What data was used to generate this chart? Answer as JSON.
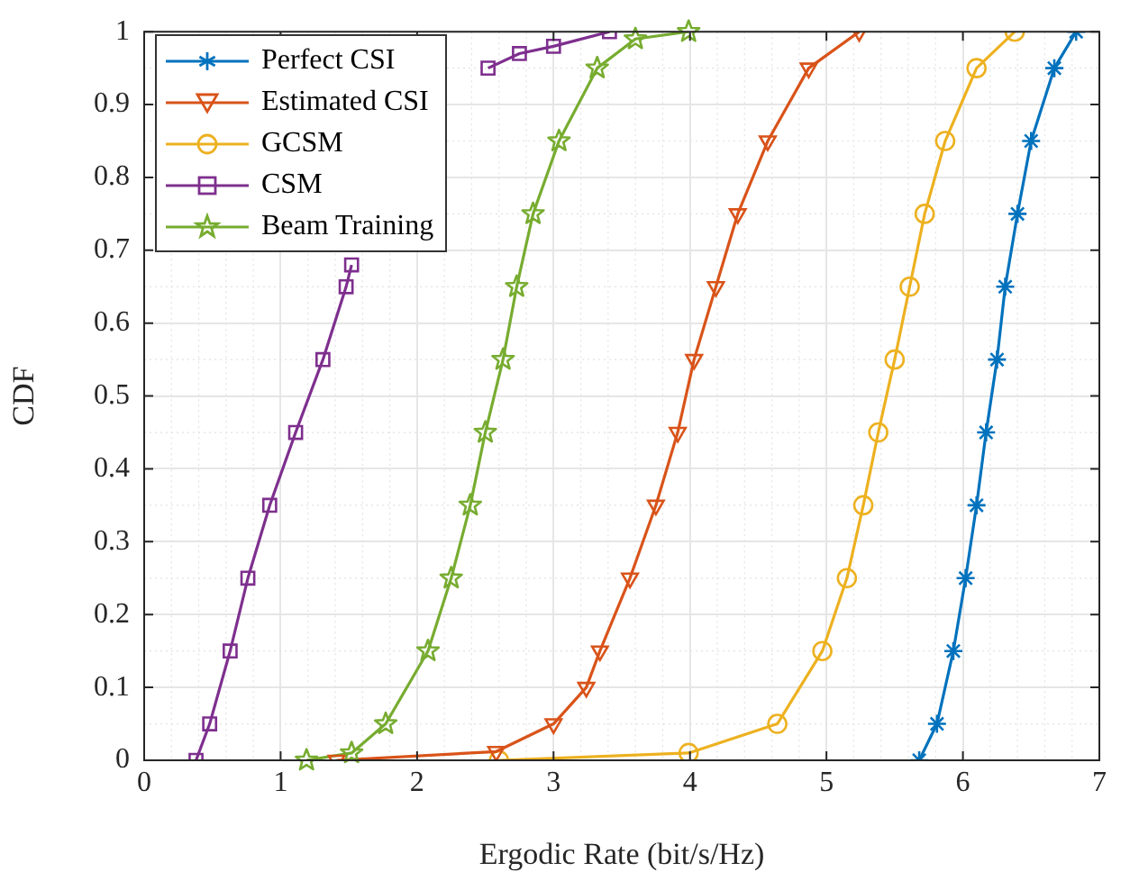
{
  "chart_data": {
    "type": "line",
    "xlabel": "Ergodic Rate (bit/s/Hz)",
    "ylabel": "CDF",
    "xlim": [
      0,
      7
    ],
    "ylim": [
      0,
      1
    ],
    "xticks": [
      0,
      1,
      2,
      3,
      4,
      5,
      6,
      7
    ],
    "yticks": [
      0,
      0.1,
      0.2,
      0.3,
      0.4,
      0.5,
      0.6,
      0.7,
      0.8,
      0.9,
      1
    ],
    "grid": true,
    "legend": "top left",
    "line_style": "solid",
    "series": [
      {
        "name": "Perfect CSI",
        "color": "#0072bd",
        "marker": "cross",
        "x": [
          5.68,
          5.81,
          5.93,
          6.02,
          6.1,
          6.17,
          6.25,
          6.31,
          6.4,
          6.5,
          6.67,
          6.83
        ],
        "values": [
          0,
          0.05,
          0.15,
          0.25,
          0.35,
          0.45,
          0.55,
          0.65,
          0.75,
          0.85,
          0.95,
          1
        ]
      },
      {
        "name": "Estimated CSI",
        "color": "#d95319",
        "marker": "triangle",
        "x": [
          1.41,
          2.58,
          3.0,
          3.24,
          3.34,
          3.56,
          3.75,
          3.91,
          4.03,
          4.19,
          4.35,
          4.57,
          4.87,
          5.24
        ],
        "values": [
          0,
          0.012,
          0.05,
          0.1,
          0.15,
          0.25,
          0.35,
          0.45,
          0.55,
          0.65,
          0.75,
          0.85,
          0.95,
          1
        ]
      },
      {
        "name": "GCSM",
        "color": "#edb120",
        "marker": "circle",
        "x": [
          2.6,
          3.99,
          4.64,
          4.97,
          5.15,
          5.27,
          5.38,
          5.5,
          5.61,
          5.72,
          5.87,
          6.1,
          6.38
        ],
        "values": [
          0,
          0.01,
          0.05,
          0.15,
          0.25,
          0.35,
          0.45,
          0.55,
          0.65,
          0.75,
          0.85,
          0.95,
          1
        ]
      },
      {
        "name": "CSM",
        "color": "#7e2f8e",
        "marker": "square",
        "x": [
          0.38,
          0.48,
          0.63,
          0.76,
          0.92,
          1.11,
          1.31,
          1.48,
          1.52,
          null,
          2.52,
          2.75,
          3.0,
          3.41
        ],
        "values": [
          0,
          0.05,
          0.15,
          0.25,
          0.35,
          0.45,
          0.55,
          0.65,
          0.68,
          null,
          0.95,
          0.97,
          0.98,
          1
        ]
      },
      {
        "name": "Beam Training",
        "color": "#77ac30",
        "marker": "star",
        "x": [
          1.19,
          1.52,
          1.77,
          2.08,
          2.25,
          2.39,
          2.5,
          2.63,
          2.73,
          2.85,
          3.04,
          3.32,
          3.6,
          3.99
        ],
        "values": [
          0,
          0.01,
          0.05,
          0.15,
          0.25,
          0.35,
          0.45,
          0.55,
          0.65,
          0.75,
          0.85,
          0.95,
          0.99,
          1
        ]
      }
    ]
  }
}
